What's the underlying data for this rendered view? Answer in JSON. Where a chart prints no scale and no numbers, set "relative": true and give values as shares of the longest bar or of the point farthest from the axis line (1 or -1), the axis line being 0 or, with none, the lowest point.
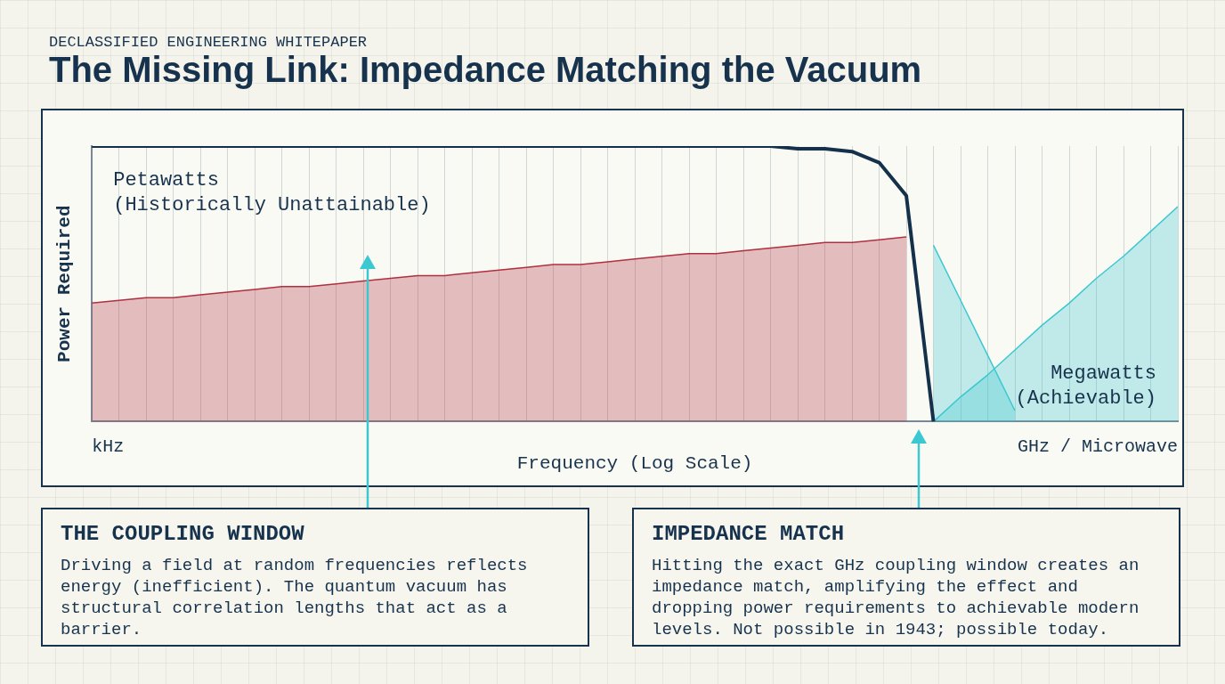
{
  "chart_data": {
    "type": "line",
    "title": "The Missing Link: Impedance Matching the Vacuum",
    "subtitle": "DECLASSIFIED ENGINEERING WHITEPAPER",
    "xlabel": "Frequency (Log Scale)",
    "ylabel": "Power Required",
    "relative": true,
    "grid": "x",
    "legend": false,
    "categories": [
      null,
      null,
      null,
      null,
      null,
      null,
      null,
      null,
      null,
      null,
      null,
      null,
      null,
      null,
      null,
      null,
      null,
      null,
      null,
      null,
      null,
      null,
      null,
      null,
      null,
      null,
      null,
      null,
      null,
      null,
      null,
      null,
      null,
      null,
      null,
      null,
      null,
      null,
      null,
      null,
      null
    ],
    "series": [
      {
        "color": "#14304a",
        "values": [
          1,
          1,
          1,
          1,
          1,
          1,
          1,
          1,
          1,
          1,
          1,
          1,
          1,
          1,
          1,
          1,
          1,
          1,
          1,
          1,
          1,
          1,
          1,
          1,
          1,
          1,
          0.99,
          0.99,
          0.98,
          0.94,
          0.82,
          0,
          null,
          null,
          null,
          null,
          null,
          null,
          null,
          null,
          null
        ]
      },
      {
        "type": "area",
        "color": "#b03040",
        "values": [
          0.43,
          0.44,
          0.45,
          0.45,
          0.46,
          0.47,
          0.48,
          0.49,
          0.49,
          0.5,
          0.51,
          0.52,
          0.53,
          0.53,
          0.54,
          0.55,
          0.56,
          0.57,
          0.57,
          0.58,
          0.59,
          0.6,
          0.61,
          0.61,
          0.62,
          0.63,
          0.64,
          0.65,
          0.65,
          0.66,
          0.67,
          null,
          null,
          null,
          null,
          null,
          null,
          null,
          null,
          null,
          null
        ]
      },
      {
        "type": "area",
        "color": "#3cc8d0",
        "values": [
          null,
          null,
          null,
          null,
          null,
          null,
          null,
          null,
          null,
          null,
          null,
          null,
          null,
          null,
          null,
          null,
          null,
          null,
          null,
          null,
          null,
          null,
          null,
          null,
          null,
          null,
          null,
          null,
          null,
          null,
          null,
          0.64,
          0.44,
          0.24,
          0.04,
          null,
          null,
          null,
          null,
          null,
          null
        ]
      },
      {
        "type": "area",
        "color": "#3cc8d0",
        "values": [
          null,
          null,
          null,
          null,
          null,
          null,
          null,
          null,
          null,
          null,
          null,
          null,
          null,
          null,
          null,
          null,
          null,
          null,
          null,
          null,
          null,
          null,
          null,
          null,
          null,
          null,
          null,
          null,
          null,
          null,
          null,
          0,
          0.09,
          0.17,
          0.26,
          0.35,
          0.43,
          0.52,
          0.6,
          0.69,
          0.78
        ]
      }
    ],
    "annotations": [
      "Petawatts",
      "(Historically Unattainable)",
      "Megawatts",
      "(Achievable)",
      "kHz",
      "GHz / Microwave",
      "THE COUPLING WINDOW",
      "Driving a field at random frequencies reflects energy (inefficient). The quantum vacuum has structural correlation lengths that act as a barrier.",
      "IMPEDANCE MATCH",
      "Hitting the exact GHz coupling window creates an impedance match, amplifying the effect and dropping power requirements to achievable modern levels. Not possible in 1943; possible today."
    ]
  }
}
